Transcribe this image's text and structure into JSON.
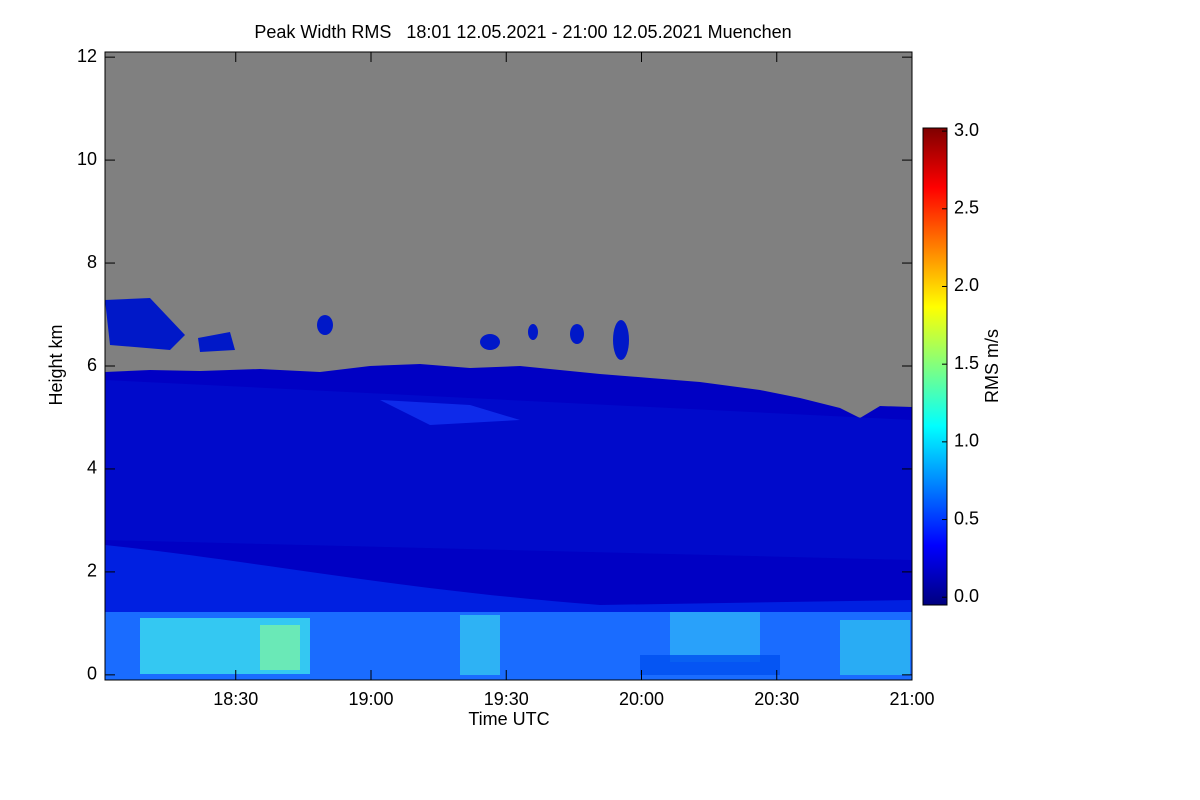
{
  "chart_data": {
    "type": "heatmap",
    "title": "Peak Width RMS   18:01 12.05.2021 - 21:00 12.05.2021 Muenchen",
    "x_label": "Time UTC",
    "y_label": "Height km",
    "xlim": [
      "18:01",
      "21:00"
    ],
    "xticks": [
      "18:30",
      "19:00",
      "19:30",
      "20:00",
      "20:30",
      "21:00"
    ],
    "ylim": [
      -0.1,
      12.1
    ],
    "yticks": [
      0,
      2,
      4,
      6,
      8,
      10,
      12
    ],
    "colorbar": {
      "label": "RMS m/s",
      "clim": [
        -0.05,
        3.02
      ],
      "ticks": [
        {
          "value": 0,
          "label": "0.0"
        },
        {
          "value": 0.5,
          "label": "0.5"
        },
        {
          "value": 1,
          "label": "1.0"
        },
        {
          "value": 1.5,
          "label": "1.5"
        },
        {
          "value": 2,
          "label": "2.0"
        },
        {
          "value": 2.5,
          "label": "2.5"
        },
        {
          "value": 3,
          "label": "3.0"
        }
      ],
      "colormap": [
        "#00007f",
        "#0000ff",
        "#0080ff",
        "#00ffff",
        "#80ff80",
        "#ffff00",
        "#ff8000",
        "#ff0000",
        "#7f0000"
      ]
    }
  }
}
